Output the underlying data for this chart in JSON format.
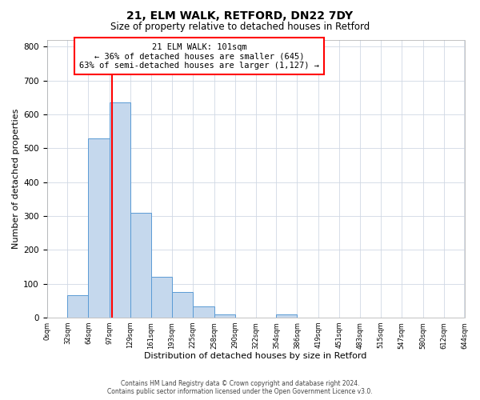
{
  "title": "21, ELM WALK, RETFORD, DN22 7DY",
  "subtitle": "Size of property relative to detached houses in Retford",
  "xlabel": "Distribution of detached houses by size in Retford",
  "ylabel": "Number of detached properties",
  "bin_edges": [
    0,
    32,
    64,
    97,
    129,
    161,
    193,
    225,
    258,
    290,
    322,
    354,
    386,
    419,
    451,
    483,
    515,
    547,
    580,
    612,
    644
  ],
  "bar_heights": [
    0,
    65,
    530,
    635,
    310,
    120,
    75,
    32,
    10,
    0,
    0,
    10,
    0,
    0,
    0,
    0,
    0,
    0,
    0,
    0
  ],
  "bar_color": "#c5d8ed",
  "bar_edge_color": "#5b9bd5",
  "property_line_x": 101,
  "property_line_color": "red",
  "annotation_line1": "21 ELM WALK: 101sqm",
  "annotation_line2": "← 36% of detached houses are smaller (645)",
  "annotation_line3": "63% of semi-detached houses are larger (1,127) →",
  "annotation_box_color": "white",
  "annotation_box_edge_color": "red",
  "ylim": [
    0,
    820
  ],
  "yticks": [
    0,
    100,
    200,
    300,
    400,
    500,
    600,
    700,
    800
  ],
  "x_tick_labels": [
    "0sqm",
    "32sqm",
    "64sqm",
    "97sqm",
    "129sqm",
    "161sqm",
    "193sqm",
    "225sqm",
    "258sqm",
    "290sqm",
    "322sqm",
    "354sqm",
    "386sqm",
    "419sqm",
    "451sqm",
    "483sqm",
    "515sqm",
    "547sqm",
    "580sqm",
    "612sqm",
    "644sqm"
  ],
  "footer_line1": "Contains HM Land Registry data © Crown copyright and database right 2024.",
  "footer_line2": "Contains public sector information licensed under the Open Government Licence v3.0.",
  "bg_color": "#ffffff",
  "grid_color": "#d0d8e4"
}
